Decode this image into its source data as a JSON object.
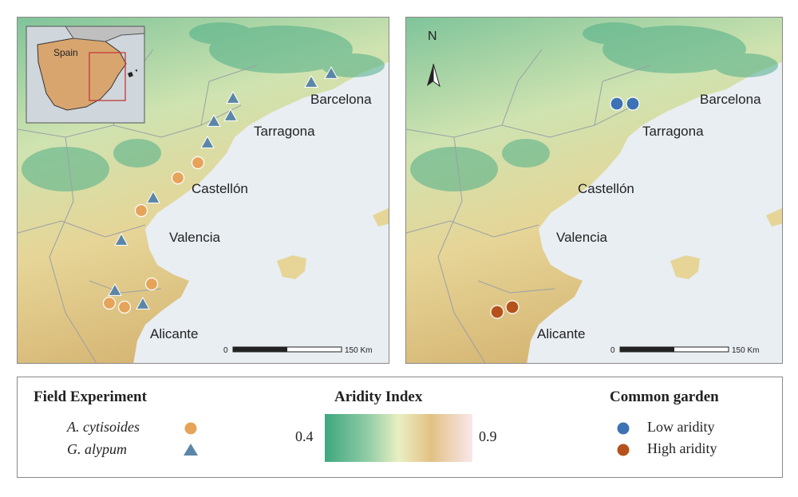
{
  "inset": {
    "label": "Spain"
  },
  "cities": {
    "barcelona": "Barcelona",
    "tarragona": "Tarragona",
    "castellon": "Castellón",
    "valencia": "Valencia",
    "alicante": "Alicante"
  },
  "north_arrow": "N",
  "scale_bar": {
    "start": "0",
    "end": "150 Km"
  },
  "legend": {
    "field": {
      "title": "Field Experiment",
      "items": [
        {
          "label": "A. cytisoides",
          "symbol": "circle",
          "color": "#e6a35a"
        },
        {
          "label": "G. alypum",
          "symbol": "triangle",
          "color": "#5b86a8"
        }
      ]
    },
    "aridity": {
      "title": "Aridity Index",
      "min": "0.4",
      "max": "0.9",
      "colors": [
        "#3fa77f",
        "#8ccba5",
        "#e8efc2",
        "#e9cf8e",
        "#f7e5e6"
      ]
    },
    "garden": {
      "title": "Common garden",
      "items": [
        {
          "label": "Low aridity",
          "symbol": "circle",
          "color": "#3d72b4"
        },
        {
          "label": "High aridity",
          "symbol": "circle",
          "color": "#b5521c"
        }
      ]
    }
  }
}
